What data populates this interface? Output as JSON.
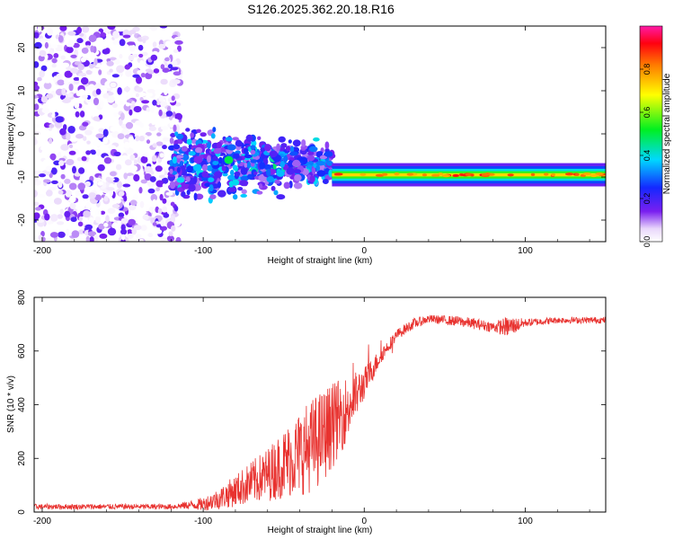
{
  "page_title": "S126.2025.362.20.18.R16",
  "chart_data": [
    {
      "type": "heatmap",
      "title": "S126.2025.362.20.18.R16",
      "xlabel": "Height of straight line (km)",
      "ylabel": "Frequency (Hz)",
      "xlim": [
        -205,
        150
      ],
      "ylim": [
        -25,
        25
      ],
      "xticks": [
        -200,
        -100,
        0,
        100
      ],
      "xtick_labels": [
        "-200",
        "-100",
        "0",
        "100"
      ],
      "yticks": [
        20,
        10,
        0,
        -10,
        -20
      ],
      "ytick_labels": [
        "20",
        "10",
        "0",
        "-10",
        "-20"
      ],
      "colorbar": {
        "label": "Normalized spectral amplitude",
        "range": [
          0,
          1
        ],
        "ticks": [
          0.0,
          0.2,
          0.4,
          0.6,
          0.8
        ],
        "tick_labels": [
          "0.0",
          "0.2",
          "0.4",
          "0.6",
          "0.8"
        ]
      },
      "features": [
        {
          "x_range": [
            -205,
            -120
          ],
          "y_range": [
            -25,
            25
          ],
          "description": "scattered noise",
          "amplitude": [
            0.0,
            0.2
          ]
        },
        {
          "x_range": [
            -120,
            -20
          ],
          "y_center": -7,
          "y_halfwidth": 7,
          "description": "noisy transition",
          "amplitude": [
            0.1,
            0.4
          ]
        },
        {
          "x_range": [
            -20,
            150
          ],
          "y_center": -9.5,
          "y_halfwidth": 2,
          "description": "steady narrow band",
          "amplitude": [
            0.3,
            0.95
          ]
        }
      ]
    },
    {
      "type": "line",
      "xlabel": "Height of straight line (km)",
      "ylabel": "SNR (10 * v/v)",
      "xlim": [
        -205,
        150
      ],
      "ylim": [
        0,
        800
      ],
      "xticks": [
        -200,
        -100,
        0,
        100
      ],
      "xtick_labels": [
        "-200",
        "-100",
        "0",
        "100"
      ],
      "yticks": [
        0,
        200,
        400,
        600,
        800
      ],
      "ytick_labels": [
        "0",
        "200",
        "400",
        "600",
        "800"
      ],
      "color": "#e8322f",
      "series": [
        {
          "name": "SNR",
          "x": [
            -205,
            -180,
            -160,
            -140,
            -120,
            -110,
            -100,
            -90,
            -80,
            -70,
            -60,
            -50,
            -40,
            -30,
            -20,
            -10,
            0,
            10,
            20,
            30,
            40,
            60,
            80,
            90,
            100,
            120,
            150
          ],
          "y": [
            20,
            20,
            20,
            20,
            20,
            25,
            30,
            50,
            80,
            110,
            140,
            180,
            220,
            260,
            320,
            390,
            480,
            580,
            660,
            700,
            720,
            710,
            690,
            690,
            705,
            715,
            715
          ],
          "noise": [
            10,
            10,
            10,
            10,
            10,
            15,
            25,
            40,
            60,
            80,
            100,
            130,
            160,
            180,
            160,
            120,
            60,
            30,
            20,
            20,
            15,
            20,
            20,
            40,
            15,
            12,
            12
          ]
        }
      ]
    }
  ]
}
